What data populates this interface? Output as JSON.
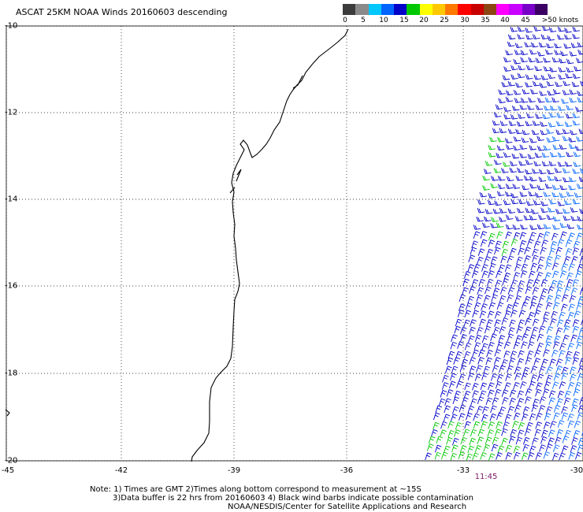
{
  "title": "ASCAT 25KM NOAA Winds 20160603 descending",
  "speed_scale": {
    "labels": [
      "0",
      "5",
      "10",
      "15",
      "20",
      "25",
      "30",
      "35",
      "40",
      "45",
      ">50 knots"
    ],
    "colors": [
      "#3c3c3c",
      "#8a8a8a",
      "#00c8ff",
      "#0064ff",
      "#0000c8",
      "#00c800",
      "#ffff00",
      "#ffc800",
      "#ff7800",
      "#ff0000",
      "#c80000",
      "#8c4614",
      "#ff00ff",
      "#c800ff",
      "#7800c8",
      "#3c0064"
    ]
  },
  "map": {
    "lat_labels": [
      "-10",
      "-12",
      "-14",
      "-16",
      "-18",
      "-20"
    ],
    "lon_labels": [
      "-45",
      "-42",
      "-39",
      "-36",
      "-33",
      "-30"
    ],
    "time_label": "11:45",
    "grid": "dotted"
  },
  "wind_colors": {
    "dark_blue": "#0000c8",
    "blue": "#0064ff",
    "green": "#00c800"
  },
  "notes": {
    "line1": "Note: 1) Times are GMT 2)Times along bottom correspond to measurement at ~15S",
    "line2": "3)Data buffer is 22 hrs from 20160603 4) Black wind barbs indicate possible contamination",
    "line3": "NOAA/NESDIS/Center for Satellite Applications and Research"
  }
}
